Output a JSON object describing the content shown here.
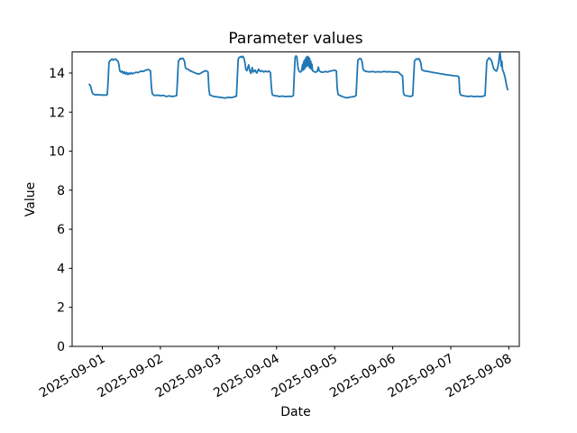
{
  "chart_data": {
    "type": "line",
    "title": "Parameter values",
    "xlabel": "Date",
    "ylabel": "Value",
    "legend": "none",
    "grid": false,
    "line_color": "#1f77b4",
    "background_color": "#ffffff",
    "text_color": "#000000",
    "y_ticks": [
      0,
      2,
      4,
      6,
      8,
      10,
      12,
      14
    ],
    "ylim": [
      0,
      15.08
    ],
    "x_tick_labels": [
      "2025-09-01",
      "2025-09-02",
      "2025-09-03",
      "2025-09-04",
      "2025-09-05",
      "2025-09-06",
      "2025-09-07",
      "2025-09-08"
    ],
    "x_tick_positions_days": [
      0,
      1,
      2,
      3,
      4,
      5,
      6,
      7
    ],
    "x_tick_rotation_deg": 30,
    "xlim_days": [
      -0.52,
      7.18
    ],
    "x_unit": "days since 2025-09-01 00:00",
    "series": [
      {
        "name": "parameter-values",
        "points": [
          [
            -0.225,
            13.42
          ],
          [
            -0.21,
            13.38
          ],
          [
            -0.195,
            13.25
          ],
          [
            -0.18,
            13.05
          ],
          [
            -0.165,
            12.95
          ],
          [
            -0.14,
            12.9
          ],
          [
            -0.11,
            12.88
          ],
          [
            -0.08,
            12.9
          ],
          [
            -0.05,
            12.87
          ],
          [
            -0.02,
            12.89
          ],
          [
            0.01,
            12.86
          ],
          [
            0.04,
            12.88
          ],
          [
            0.07,
            12.87
          ],
          [
            0.085,
            12.9
          ],
          [
            0.1,
            13.6
          ],
          [
            0.115,
            14.55
          ],
          [
            0.13,
            14.62
          ],
          [
            0.15,
            14.68
          ],
          [
            0.17,
            14.72
          ],
          [
            0.19,
            14.66
          ],
          [
            0.21,
            14.7
          ],
          [
            0.23,
            14.72
          ],
          [
            0.25,
            14.65
          ],
          [
            0.27,
            14.6
          ],
          [
            0.285,
            14.45
          ],
          [
            0.3,
            14.12
          ],
          [
            0.32,
            14.05
          ],
          [
            0.34,
            14.1
          ],
          [
            0.36,
            13.98
          ],
          [
            0.38,
            14.06
          ],
          [
            0.4,
            13.95
          ],
          [
            0.42,
            14.03
          ],
          [
            0.44,
            13.92
          ],
          [
            0.46,
            14.0
          ],
          [
            0.48,
            13.95
          ],
          [
            0.5,
            14.02
          ],
          [
            0.52,
            13.96
          ],
          [
            0.55,
            14.0
          ],
          [
            0.58,
            14.04
          ],
          [
            0.61,
            14.02
          ],
          [
            0.64,
            14.06
          ],
          [
            0.67,
            14.1
          ],
          [
            0.7,
            14.08
          ],
          [
            0.73,
            14.12
          ],
          [
            0.76,
            14.16
          ],
          [
            0.79,
            14.18
          ],
          [
            0.81,
            14.15
          ],
          [
            0.83,
            14.1
          ],
          [
            0.845,
            13.3
          ],
          [
            0.86,
            12.95
          ],
          [
            0.88,
            12.88
          ],
          [
            0.91,
            12.85
          ],
          [
            0.95,
            12.87
          ],
          [
            1.0,
            12.84
          ],
          [
            1.05,
            12.86
          ],
          [
            1.1,
            12.8
          ],
          [
            1.15,
            12.83
          ],
          [
            1.2,
            12.8
          ],
          [
            1.25,
            12.82
          ],
          [
            1.28,
            12.85
          ],
          [
            1.295,
            13.7
          ],
          [
            1.31,
            14.6
          ],
          [
            1.325,
            14.68
          ],
          [
            1.345,
            14.75
          ],
          [
            1.365,
            14.72
          ],
          [
            1.385,
            14.76
          ],
          [
            1.4,
            14.7
          ],
          [
            1.415,
            14.6
          ],
          [
            1.43,
            14.28
          ],
          [
            1.45,
            14.22
          ],
          [
            1.48,
            14.18
          ],
          [
            1.51,
            14.12
          ],
          [
            1.54,
            14.08
          ],
          [
            1.57,
            14.04
          ],
          [
            1.6,
            14.0
          ],
          [
            1.63,
            13.97
          ],
          [
            1.66,
            13.95
          ],
          [
            1.69,
            13.98
          ],
          [
            1.72,
            14.04
          ],
          [
            1.75,
            14.08
          ],
          [
            1.78,
            14.12
          ],
          [
            1.8,
            14.1
          ],
          [
            1.82,
            14.05
          ],
          [
            1.835,
            13.2
          ],
          [
            1.85,
            12.88
          ],
          [
            1.88,
            12.84
          ],
          [
            1.92,
            12.8
          ],
          [
            1.97,
            12.78
          ],
          [
            2.02,
            12.76
          ],
          [
            2.07,
            12.74
          ],
          [
            2.12,
            12.72
          ],
          [
            2.17,
            12.76
          ],
          [
            2.22,
            12.74
          ],
          [
            2.27,
            12.78
          ],
          [
            2.31,
            12.82
          ],
          [
            2.325,
            13.8
          ],
          [
            2.34,
            14.72
          ],
          [
            2.36,
            14.8
          ],
          [
            2.38,
            14.85
          ],
          [
            2.4,
            14.8
          ],
          [
            2.42,
            14.86
          ],
          [
            2.44,
            14.75
          ],
          [
            2.455,
            14.55
          ],
          [
            2.47,
            14.2
          ],
          [
            2.49,
            14.12
          ],
          [
            2.52,
            14.42
          ],
          [
            2.54,
            14.1
          ],
          [
            2.56,
            13.98
          ],
          [
            2.58,
            14.28
          ],
          [
            2.6,
            14.05
          ],
          [
            2.63,
            14.15
          ],
          [
            2.66,
            14.0
          ],
          [
            2.69,
            14.2
          ],
          [
            2.72,
            14.08
          ],
          [
            2.75,
            14.12
          ],
          [
            2.78,
            14.05
          ],
          [
            2.81,
            14.1
          ],
          [
            2.84,
            14.06
          ],
          [
            2.87,
            14.1
          ],
          [
            2.895,
            14.02
          ],
          [
            2.91,
            13.3
          ],
          [
            2.925,
            12.9
          ],
          [
            2.95,
            12.85
          ],
          [
            3.0,
            12.83
          ],
          [
            3.05,
            12.8
          ],
          [
            3.1,
            12.82
          ],
          [
            3.15,
            12.79
          ],
          [
            3.2,
            12.81
          ],
          [
            3.26,
            12.8
          ],
          [
            3.29,
            12.85
          ],
          [
            3.305,
            13.9
          ],
          [
            3.32,
            14.8
          ],
          [
            3.335,
            14.88
          ],
          [
            3.35,
            14.82
          ],
          [
            3.37,
            14.25
          ],
          [
            3.39,
            14.08
          ],
          [
            3.41,
            14.05
          ],
          [
            3.43,
            14.1
          ],
          [
            3.45,
            14.45
          ],
          [
            3.46,
            14.15
          ],
          [
            3.47,
            14.6
          ],
          [
            3.48,
            14.2
          ],
          [
            3.49,
            14.7
          ],
          [
            3.5,
            14.3
          ],
          [
            3.51,
            14.8
          ],
          [
            3.52,
            14.35
          ],
          [
            3.53,
            14.85
          ],
          [
            3.54,
            14.4
          ],
          [
            3.55,
            14.82
          ],
          [
            3.56,
            14.3
          ],
          [
            3.57,
            14.75
          ],
          [
            3.58,
            14.25
          ],
          [
            3.59,
            14.6
          ],
          [
            3.6,
            14.2
          ],
          [
            3.61,
            14.45
          ],
          [
            3.62,
            14.12
          ],
          [
            3.64,
            14.08
          ],
          [
            3.67,
            14.04
          ],
          [
            3.7,
            14.08
          ],
          [
            3.72,
            14.3
          ],
          [
            3.735,
            14.12
          ],
          [
            3.76,
            14.06
          ],
          [
            3.8,
            14.04
          ],
          [
            3.84,
            14.08
          ],
          [
            3.88,
            14.05
          ],
          [
            3.92,
            14.1
          ],
          [
            3.96,
            14.12
          ],
          [
            4.0,
            14.15
          ],
          [
            4.03,
            14.1
          ],
          [
            4.045,
            13.2
          ],
          [
            4.06,
            12.9
          ],
          [
            4.09,
            12.85
          ],
          [
            4.13,
            12.8
          ],
          [
            4.17,
            12.76
          ],
          [
            4.21,
            12.73
          ],
          [
            4.25,
            12.76
          ],
          [
            4.3,
            12.78
          ],
          [
            4.34,
            12.8
          ],
          [
            4.37,
            12.85
          ],
          [
            4.385,
            13.8
          ],
          [
            4.4,
            14.65
          ],
          [
            4.42,
            14.72
          ],
          [
            4.44,
            14.75
          ],
          [
            4.46,
            14.7
          ],
          [
            4.475,
            14.55
          ],
          [
            4.49,
            14.2
          ],
          [
            4.51,
            14.12
          ],
          [
            4.55,
            14.08
          ],
          [
            4.6,
            14.06
          ],
          [
            4.65,
            14.08
          ],
          [
            4.7,
            14.05
          ],
          [
            4.75,
            14.07
          ],
          [
            4.8,
            14.05
          ],
          [
            4.85,
            14.08
          ],
          [
            4.9,
            14.06
          ],
          [
            4.95,
            14.07
          ],
          [
            5.0,
            14.05
          ],
          [
            5.05,
            14.06
          ],
          [
            5.1,
            14.04
          ],
          [
            5.13,
            13.95
          ],
          [
            5.15,
            13.9
          ],
          [
            5.17,
            13.85
          ],
          [
            5.185,
            13.0
          ],
          [
            5.2,
            12.87
          ],
          [
            5.23,
            12.84
          ],
          [
            5.27,
            12.82
          ],
          [
            5.31,
            12.8
          ],
          [
            5.345,
            12.85
          ],
          [
            5.36,
            13.7
          ],
          [
            5.375,
            14.6
          ],
          [
            5.39,
            14.68
          ],
          [
            5.41,
            14.73
          ],
          [
            5.43,
            14.7
          ],
          [
            5.45,
            14.74
          ],
          [
            5.47,
            14.65
          ],
          [
            5.485,
            14.5
          ],
          [
            5.5,
            14.18
          ],
          [
            5.53,
            14.12
          ],
          [
            5.57,
            14.1
          ],
          [
            5.61,
            14.08
          ],
          [
            5.66,
            14.05
          ],
          [
            5.71,
            14.02
          ],
          [
            5.76,
            14.0
          ],
          [
            5.81,
            13.97
          ],
          [
            5.86,
            13.95
          ],
          [
            5.91,
            13.92
          ],
          [
            5.96,
            13.9
          ],
          [
            6.01,
            13.88
          ],
          [
            6.06,
            13.86
          ],
          [
            6.11,
            13.85
          ],
          [
            6.14,
            13.8
          ],
          [
            6.155,
            13.0
          ],
          [
            6.17,
            12.88
          ],
          [
            6.2,
            12.85
          ],
          [
            6.25,
            12.82
          ],
          [
            6.3,
            12.8
          ],
          [
            6.35,
            12.82
          ],
          [
            6.4,
            12.79
          ],
          [
            6.45,
            12.81
          ],
          [
            6.5,
            12.79
          ],
          [
            6.55,
            12.81
          ],
          [
            6.59,
            12.85
          ],
          [
            6.605,
            13.7
          ],
          [
            6.62,
            14.6
          ],
          [
            6.64,
            14.7
          ],
          [
            6.66,
            14.78
          ],
          [
            6.68,
            14.72
          ],
          [
            6.7,
            14.65
          ],
          [
            6.715,
            14.5
          ],
          [
            6.73,
            14.3
          ],
          [
            6.75,
            14.18
          ],
          [
            6.77,
            14.12
          ],
          [
            6.79,
            14.1
          ],
          [
            6.81,
            14.3
          ],
          [
            6.825,
            14.55
          ],
          [
            6.84,
            14.95
          ],
          [
            6.85,
            15.03
          ],
          [
            6.86,
            14.7
          ],
          [
            6.87,
            14.35
          ],
          [
            6.88,
            14.6
          ],
          [
            6.89,
            14.2
          ],
          [
            6.9,
            14.12
          ],
          [
            6.92,
            13.95
          ],
          [
            6.94,
            13.7
          ],
          [
            6.955,
            13.45
          ],
          [
            6.97,
            13.25
          ],
          [
            6.98,
            13.15
          ]
        ]
      }
    ]
  }
}
